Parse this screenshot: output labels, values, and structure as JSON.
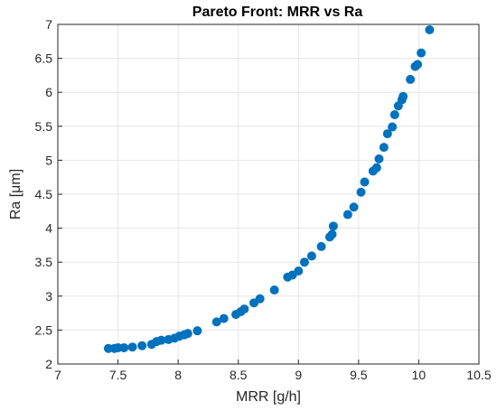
{
  "chart_data": {
    "type": "scatter",
    "title": "Pareto Front: MRR vs Ra",
    "xlabel": "MRR [g/h]",
    "ylabel": "Ra [μm]",
    "xlim": [
      7,
      10.5
    ],
    "ylim": [
      2,
      7
    ],
    "xticks": [
      "7",
      "7.5",
      "8",
      "8.5",
      "9",
      "9.5",
      "10",
      "10.5"
    ],
    "yticks": [
      "2",
      "2.5",
      "3",
      "3.5",
      "4",
      "4.5",
      "5",
      "5.5",
      "6",
      "6.5",
      "7"
    ],
    "grid": true,
    "marker_color": "#0072BD",
    "series": [
      {
        "x": [
          7.42,
          7.47,
          7.5,
          7.55,
          7.62,
          7.7,
          7.78,
          7.82,
          7.86,
          7.92,
          7.97,
          8.01,
          8.05,
          8.08,
          8.16,
          8.32,
          8.38,
          8.48,
          8.52,
          8.55,
          8.63,
          8.68,
          8.8,
          8.91,
          8.95,
          9.0,
          9.05,
          9.11,
          9.19,
          9.26,
          9.28,
          9.29,
          9.41,
          9.46,
          9.52,
          9.55,
          9.62,
          9.65,
          9.67,
          9.71,
          9.74,
          9.78,
          9.8,
          9.83,
          9.86,
          9.87,
          9.93,
          9.97,
          9.99,
          10.02,
          10.09
        ],
        "y": [
          2.23,
          2.23,
          2.24,
          2.24,
          2.25,
          2.27,
          2.29,
          2.33,
          2.35,
          2.36,
          2.38,
          2.41,
          2.43,
          2.45,
          2.49,
          2.62,
          2.67,
          2.73,
          2.77,
          2.81,
          2.9,
          2.96,
          3.09,
          3.28,
          3.31,
          3.37,
          3.5,
          3.59,
          3.73,
          3.87,
          3.91,
          4.03,
          4.2,
          4.31,
          4.53,
          4.68,
          4.84,
          4.89,
          5.02,
          5.19,
          5.39,
          5.49,
          5.67,
          5.8,
          5.89,
          5.94,
          6.19,
          6.38,
          6.41,
          6.58,
          6.92
        ]
      }
    ]
  }
}
